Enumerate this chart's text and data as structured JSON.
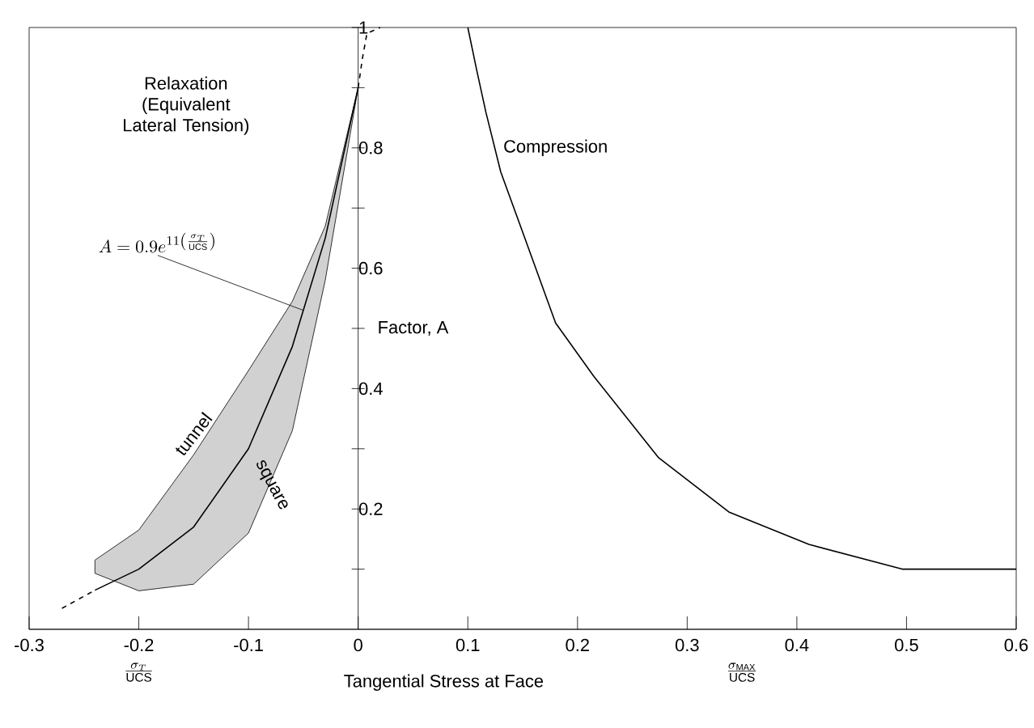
{
  "chart_data": {
    "type": "line",
    "xlabel": "Tangential Stress at Face",
    "ylabel": "Factor, A",
    "xlim": [
      -0.3,
      0.6
    ],
    "ylim": [
      0,
      1
    ],
    "xticks": [
      -0.3,
      -0.2,
      -0.1,
      0,
      0.1,
      0.2,
      0.3,
      0.4,
      0.5,
      0.6
    ],
    "yticks": [
      {
        "value": 0.1,
        "label": null
      },
      0.2,
      {
        "value": 0.3,
        "label": null
      },
      0.4,
      {
        "value": 0.5,
        "label": null
      },
      0.6,
      {
        "value": 0.7,
        "label": null
      },
      0.8,
      {
        "value": 0.9,
        "label": null
      },
      1
    ],
    "grid": false,
    "series": [
      {
        "color": "#000000",
        "line_style": "solid",
        "x": [
          -0.24,
          -0.2,
          -0.15,
          -0.1,
          -0.06,
          -0.03,
          0
        ],
        "values": [
          0.065,
          0.1,
          0.17,
          0.3,
          0.47,
          0.65,
          0.9
        ],
        "lower": [
          0.093,
          0.064,
          0.075,
          0.16,
          0.33,
          0.58,
          0.9
        ],
        "upper": [
          0.115,
          0.165,
          0.29,
          0.43,
          0.545,
          0.67,
          0.9
        ]
      },
      {
        "color": "#000000",
        "line_style": "dashed",
        "x": [
          -0.27,
          -0.24
        ],
        "values": [
          0.035,
          0.065
        ]
      },
      {
        "color": "#000000",
        "line_style": "dashed",
        "x": [
          0,
          0.004,
          0.008,
          0.02
        ],
        "values": [
          0.9,
          0.95,
          0.99,
          1.0
        ]
      },
      {
        "color": "#000000",
        "line_style": "solid",
        "x": [
          0.1,
          0.108,
          0.1165,
          0.13,
          0.15,
          0.18,
          0.215,
          0.274,
          0.338,
          0.411,
          0.496,
          0.6
        ],
        "values": [
          1.0,
          0.93,
          0.859,
          0.76,
          0.66,
          0.509,
          0.42,
          0.285,
          0.195,
          0.141,
          0.1,
          0.1
        ]
      }
    ],
    "annotations": [
      "Relaxation (Equivalent Lateral Tension)",
      "Compression",
      "tunnel",
      "square",
      {
        "text": "A=0.9e^{11\\left(\\frac{\\sigma_T}{\\mathrm{UCS}}\\right)}",
        "x": -0.05,
        "y": 0.53
      },
      "\\frac{\\sigma_T}{\\mathrm{UCS}}",
      "\\frac{\\sigma_{\\mathrm{MAX}}}{\\mathrm{UCS}}"
    ]
  }
}
